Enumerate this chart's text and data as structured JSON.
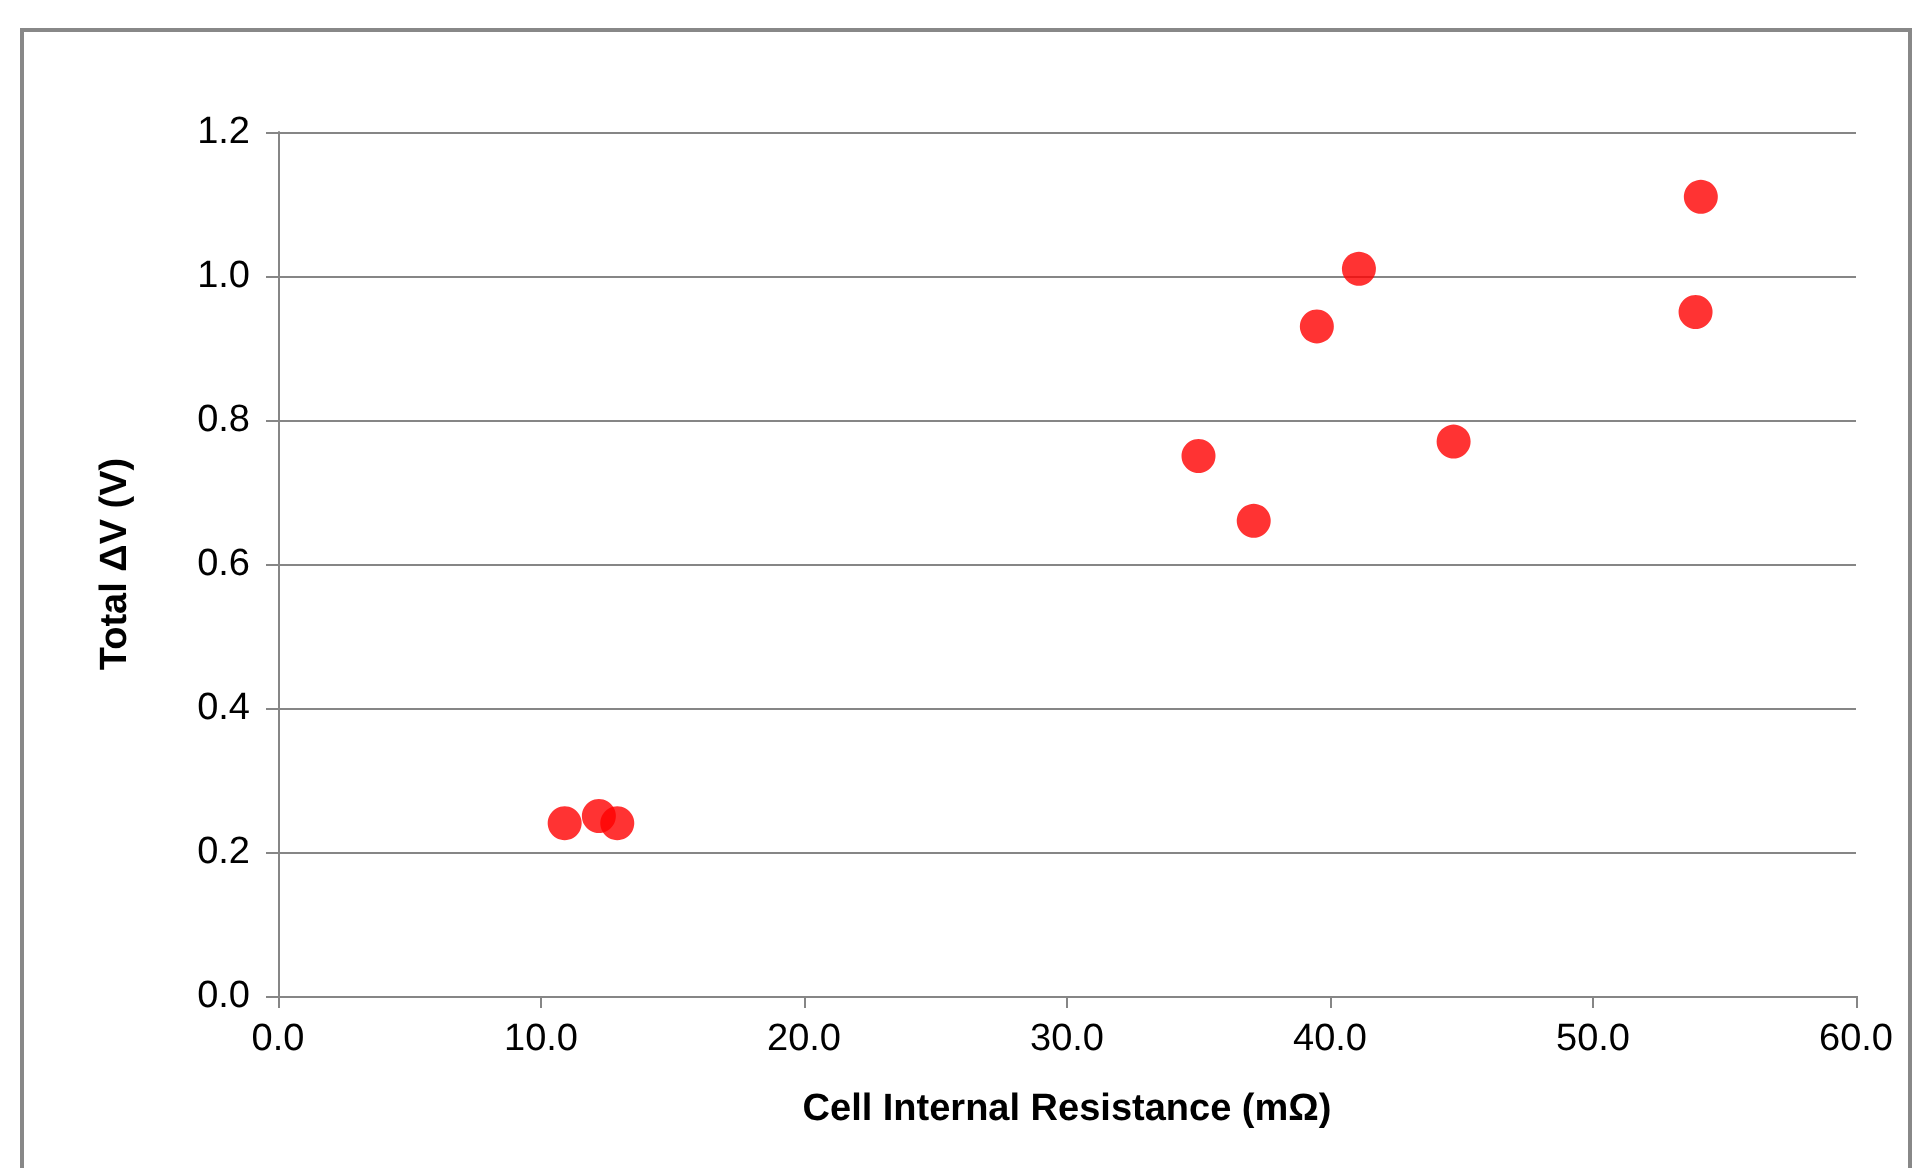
{
  "chart_data": {
    "type": "scatter",
    "xlabel": "Cell Internal Resistance (mΩ)",
    "ylabel": "Total ΔV (V)",
    "x": [
      10.9,
      12.2,
      12.9,
      35.0,
      37.1,
      39.5,
      41.1,
      44.7,
      53.9,
      54.1
    ],
    "series": [
      {
        "color": "#ff0000",
        "values": [
          0.24,
          0.25,
          0.24,
          0.75,
          0.66,
          0.93,
          1.01,
          0.77,
          0.95,
          1.11
        ]
      }
    ],
    "xlim": [
      0,
      60
    ],
    "xticks": [
      {
        "value": 0,
        "label": "0.0"
      },
      {
        "value": 10,
        "label": "10.0"
      },
      {
        "value": 20,
        "label": "20.0"
      },
      {
        "value": 30,
        "label": "30.0"
      },
      {
        "value": 40,
        "label": "40.0"
      },
      {
        "value": 50,
        "label": "50.0"
      },
      {
        "value": 60,
        "label": "60.0"
      }
    ],
    "ylim": [
      0,
      1.2
    ],
    "yticks": [
      {
        "value": 0,
        "label": "0.0"
      },
      {
        "value": 0.2,
        "label": "0.2"
      },
      {
        "value": 0.4,
        "label": "0.4"
      },
      {
        "value": 0.6,
        "label": "0.6"
      },
      {
        "value": 0.8,
        "label": "0.8"
      },
      {
        "value": 1.0,
        "label": "1.0"
      },
      {
        "value": 1.2,
        "label": "1.2"
      }
    ],
    "grid": "y",
    "marker": "circle"
  }
}
